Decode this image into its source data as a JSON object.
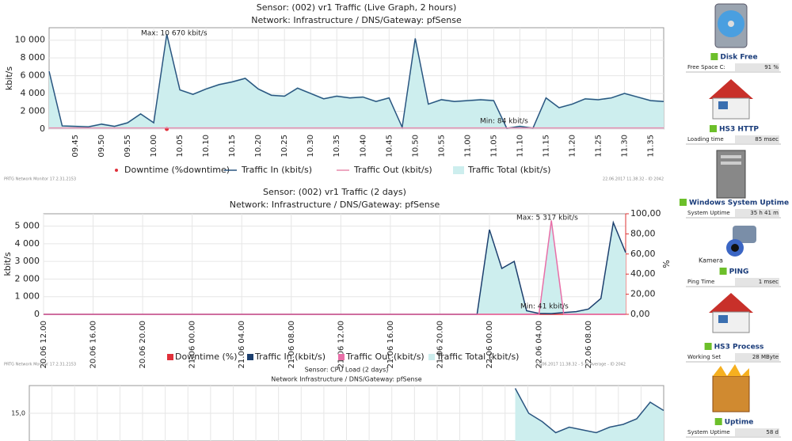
{
  "chart_data": [
    {
      "type": "line",
      "title": "Sensor: (002) vr1 Traffic (Live Graph, 2 hours)",
      "subtitle": "Network: Infrastructure / DNS/Gateway: pfSense",
      "y_label": "kbit/s",
      "ylim": [
        0,
        11400
      ],
      "yticks": [
        0,
        {
          "value": 2000,
          "label": "2 000"
        },
        {
          "value": 4000,
          "label": "4 000"
        },
        {
          "value": 6000,
          "label": "6 000"
        },
        {
          "value": 8000,
          "label": "8 000"
        },
        {
          "value": 10000,
          "label": "10 000"
        }
      ],
      "grid": true,
      "categories": [
        null,
        null,
        "09.45",
        null,
        "09.50",
        null,
        "09.55",
        null,
        "10.00",
        null,
        "10.05",
        null,
        "10.10",
        null,
        "10.15",
        null,
        "10.20",
        null,
        "10.25",
        null,
        "10.30",
        null,
        "10.35",
        null,
        "10.40",
        null,
        "10.45",
        null,
        "10.50",
        null,
        "10.55",
        null,
        "11.00",
        null,
        "11.05",
        null,
        "11.10",
        null,
        "11.15",
        null,
        "11.20",
        null,
        "11.25",
        null,
        "11.30",
        null,
        "11.35",
        null
      ],
      "series": [
        {
          "name": "Downtime (%downtime)",
          "color": "#e0303a",
          "style": "points",
          "values": [
            null,
            null,
            null,
            null,
            null,
            null,
            null,
            null,
            null,
            0,
            null,
            null,
            null,
            null,
            null,
            null,
            null,
            null,
            null,
            null,
            null,
            null,
            null,
            null,
            null,
            null,
            null,
            null,
            null,
            null,
            null,
            null,
            null,
            null,
            null,
            null,
            null,
            null,
            null,
            null,
            null,
            null,
            null,
            null,
            null,
            null,
            null,
            null
          ]
        },
        {
          "name": "Traffic In (kbit/s)",
          "color": "#2a5580",
          "style": "line",
          "values": [
            6500,
            350,
            300,
            250,
            550,
            300,
            700,
            1700,
            700,
            10670,
            4400,
            3900,
            4500,
            5000,
            5300,
            5700,
            4500,
            3800,
            3700,
            4600,
            4000,
            3400,
            3700,
            3500,
            3600,
            3100,
            3500,
            200,
            10200,
            2800,
            3300,
            3100,
            3200,
            3300,
            3200,
            84,
            300,
            100,
            3500,
            2400,
            2800,
            3400,
            3300,
            3500,
            4000,
            3600,
            3200,
            3100
          ]
        },
        {
          "name": "Traffic Out (kbit/s)",
          "color": "#e88aac",
          "style": "line",
          "values": [
            120,
            120,
            120,
            120,
            120,
            120,
            120,
            120,
            120,
            120,
            120,
            120,
            120,
            120,
            120,
            120,
            120,
            120,
            120,
            120,
            120,
            120,
            120,
            120,
            120,
            120,
            120,
            120,
            120,
            120,
            120,
            120,
            120,
            120,
            120,
            120,
            120,
            120,
            120,
            120,
            120,
            120,
            120,
            120,
            120,
            120,
            120,
            120
          ]
        },
        {
          "name": "Traffic Total (kbit/s)",
          "color": "#cdeeee",
          "style": "area",
          "values": [
            6620,
            470,
            420,
            370,
            670,
            420,
            820,
            1820,
            820,
            10790,
            4520,
            4020,
            4620,
            5120,
            5420,
            5820,
            4620,
            3920,
            3820,
            4720,
            4120,
            3520,
            3820,
            3620,
            3720,
            3220,
            3620,
            320,
            10320,
            2920,
            3420,
            3220,
            3320,
            3420,
            3320,
            204,
            420,
            220,
            3620,
            2520,
            2920,
            3520,
            3420,
            3620,
            4120,
            3720,
            3320,
            3220
          ]
        }
      ],
      "annotations": [
        "Max: 10 670 kbit/s",
        "Min: 84 kbit/s"
      ],
      "notes": [
        "PRTG Network Monitor 17.2.31.2153",
        "22.06.2017 11.38.32 - ID 2042"
      ]
    },
    {
      "type": "line",
      "title": "Sensor: (002) vr1 Traffic (2 days)",
      "subtitle": "Network: Infrastructure / DNS/Gateway: pfSense",
      "y_label": "kbit/s",
      "y2_label": "%",
      "ylim": [
        0,
        5700
      ],
      "y2lim": [
        0,
        100
      ],
      "yticks": [
        0,
        {
          "value": 1000,
          "label": "1 000"
        },
        {
          "value": 2000,
          "label": "2 000"
        },
        {
          "value": 3000,
          "label": "3 000"
        },
        {
          "value": 4000,
          "label": "4 000"
        },
        {
          "value": 5000,
          "label": "5 000"
        }
      ],
      "y2ticks": [
        {
          "value": 0,
          "label": "0,00"
        },
        {
          "value": 20,
          "label": "20,00"
        },
        {
          "value": 40,
          "label": "40,00"
        },
        {
          "value": 60,
          "label": "60,00"
        },
        {
          "value": 80,
          "label": "80,00"
        },
        {
          "value": 100,
          "label": "100,00"
        }
      ],
      "grid": true,
      "categories": [
        "20.06 12.00",
        null,
        null,
        null,
        "20.06 16.00",
        null,
        null,
        null,
        "20.06 20.00",
        null,
        null,
        null,
        "21.06 00.00",
        null,
        null,
        null,
        "21.06 04.00",
        null,
        null,
        null,
        "21.06 08.00",
        null,
        null,
        null,
        "21.06 12.00",
        null,
        null,
        null,
        "21.06 16.00",
        null,
        null,
        null,
        "21.06 20.00",
        null,
        null,
        null,
        "22.06 00.00",
        null,
        null,
        null,
        "22.06 04.00",
        null,
        null,
        null,
        "22.06 08.00",
        null,
        null,
        null
      ],
      "series": [
        {
          "name": "Downtime (%)",
          "color": "#e0303a",
          "style": "line",
          "axis": "y2",
          "values": [
            0,
            0,
            0,
            0,
            0,
            0,
            0,
            0,
            0,
            0,
            0,
            0,
            0,
            0,
            0,
            0,
            0,
            0,
            0,
            0,
            0,
            0,
            0,
            0,
            0,
            0,
            0,
            0,
            0,
            0,
            0,
            0,
            0,
            0,
            0,
            0,
            0,
            0,
            0,
            0,
            0,
            0,
            0,
            0,
            0,
            0,
            0,
            0
          ]
        },
        {
          "name": "Traffic In (kbit/s)",
          "color": "#1c3f6e",
          "style": "line",
          "values": [
            0,
            0,
            0,
            0,
            0,
            0,
            0,
            0,
            0,
            0,
            0,
            0,
            0,
            0,
            0,
            0,
            0,
            0,
            0,
            0,
            0,
            0,
            0,
            0,
            0,
            0,
            0,
            0,
            0,
            0,
            0,
            0,
            0,
            0,
            0,
            0,
            4800,
            2600,
            3000,
            200,
            50,
            41,
            100,
            150,
            300,
            900,
            5200,
            3500
          ]
        },
        {
          "name": "Traffic Out (kbit/s)",
          "color": "#e86fa8",
          "style": "line",
          "values": [
            0,
            0,
            0,
            0,
            0,
            0,
            0,
            0,
            0,
            0,
            0,
            0,
            0,
            0,
            0,
            0,
            0,
            0,
            0,
            0,
            0,
            0,
            0,
            0,
            0,
            0,
            0,
            0,
            0,
            0,
            0,
            0,
            0,
            0,
            0,
            0,
            0,
            0,
            0,
            0,
            0,
            5317,
            0,
            0,
            0,
            0,
            0,
            0
          ]
        },
        {
          "name": "Traffic Total (kbit/s)",
          "color": "#cdeeee",
          "style": "area",
          "values": [
            0,
            0,
            0,
            0,
            0,
            0,
            0,
            0,
            0,
            0,
            0,
            0,
            0,
            0,
            0,
            0,
            0,
            0,
            0,
            0,
            0,
            0,
            0,
            0,
            0,
            0,
            0,
            0,
            0,
            0,
            0,
            0,
            0,
            0,
            0,
            0,
            4800,
            2600,
            3000,
            200,
            50,
            5358,
            100,
            150,
            300,
            900,
            5200,
            3500
          ]
        }
      ],
      "annotations": [
        "Max: 5 317 kbit/s",
        "Min: 41 kbit/s"
      ],
      "notes": [
        "PRTG Network Monitor 17.2.31.2153",
        "22.06.2017 11.38.32 - 5 m Average - ID 2042"
      ]
    },
    {
      "type": "line",
      "title": "Sensor: CPU Load (2 days)",
      "subtitle": "Network Infrastructure / DNS/Gateway: pfSense",
      "ylim": [
        5,
        25
      ],
      "yticks": [
        {
          "value": 15,
          "label": "15,0"
        }
      ],
      "grid": true,
      "color": "#2a5580",
      "values": [
        null,
        null,
        null,
        null,
        null,
        null,
        null,
        null,
        null,
        null,
        null,
        null,
        null,
        null,
        null,
        null,
        null,
        null,
        null,
        null,
        null,
        null,
        null,
        null,
        null,
        null,
        null,
        null,
        null,
        null,
        null,
        null,
        null,
        null,
        null,
        null,
        24,
        15,
        12,
        8,
        10,
        9,
        8,
        10,
        11,
        13,
        19,
        16
      ]
    }
  ],
  "sensors": [
    {
      "name": "Disk Free",
      "channel": "Free Space C:",
      "value": "91 %"
    },
    {
      "name": "HS3 HTTP",
      "channel": "Loading time",
      "value": "85 msec"
    },
    {
      "name": "Windows System Uptime",
      "channel": "System Uptime",
      "value": "35 h 41 m"
    },
    {
      "label": "Kamera",
      "name": "PING",
      "channel": "Ping Time",
      "value": "1 msec"
    },
    {
      "name": "HS3 Process",
      "channel": "Working Set",
      "value": "28 MByte"
    },
    {
      "name": "Uptime",
      "channel": "System Uptime",
      "value": "58 d"
    }
  ]
}
